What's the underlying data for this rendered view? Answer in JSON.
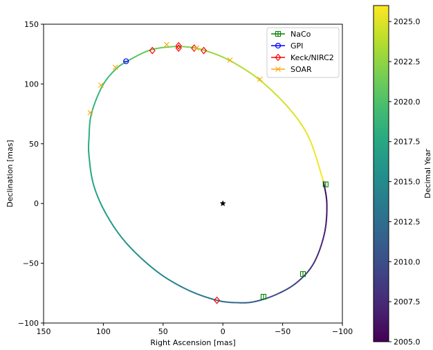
{
  "chart_data": {
    "type": "scatter",
    "xlabel": "Right Ascension [mas]",
    "ylabel": "Declination [mas]",
    "xlim": [
      150,
      -100
    ],
    "ylim": [
      -100,
      150
    ],
    "xticks": [
      150,
      100,
      50,
      0,
      -50,
      -100
    ],
    "yticks": [
      -100,
      -50,
      0,
      50,
      100,
      150
    ],
    "xtick_labels": [
      "150",
      "100",
      "50",
      "0",
      "−50",
      "−100"
    ],
    "ytick_labels": [
      "−100",
      "−50",
      "0",
      "50",
      "100",
      "150"
    ],
    "legend_position": "top-right",
    "star": {
      "x": 0,
      "y": 0,
      "marker": "star",
      "color": "#000000"
    },
    "orbit": {
      "note": "orbit track colored by epoch",
      "points": [
        {
          "x": -84,
          "y": 19,
          "t": 2005.0
        },
        {
          "x": -87,
          "y": 0,
          "t": 2006.0
        },
        {
          "x": -85,
          "y": -25,
          "t": 2007.0
        },
        {
          "x": -76,
          "y": -50,
          "t": 2008.0
        },
        {
          "x": -62,
          "y": -66,
          "t": 2009.0
        },
        {
          "x": -45,
          "y": -76,
          "t": 2010.0
        },
        {
          "x": -27,
          "y": -82,
          "t": 2011.0
        },
        {
          "x": -13,
          "y": -83,
          "t": 2012.0
        },
        {
          "x": 5,
          "y": -81,
          "t": 2013.0
        },
        {
          "x": 30,
          "y": -72,
          "t": 2014.0
        },
        {
          "x": 55,
          "y": -57,
          "t": 2015.0
        },
        {
          "x": 80,
          "y": -34,
          "t": 2016.0
        },
        {
          "x": 97,
          "y": -10,
          "t": 2016.7
        },
        {
          "x": 108,
          "y": 15,
          "t": 2017.3
        },
        {
          "x": 112,
          "y": 40,
          "t": 2017.8
        },
        {
          "x": 112,
          "y": 55,
          "t": 2018.2
        },
        {
          "x": 110,
          "y": 75,
          "t": 2018.7
        },
        {
          "x": 101,
          "y": 98,
          "t": 2019.3
        },
        {
          "x": 90,
          "y": 112,
          "t": 2019.8
        },
        {
          "x": 80,
          "y": 119,
          "t": 2020.2
        },
        {
          "x": 62,
          "y": 128,
          "t": 2020.9
        },
        {
          "x": 45,
          "y": 131,
          "t": 2021.5
        },
        {
          "x": 30,
          "y": 131,
          "t": 2022.0
        },
        {
          "x": 15,
          "y": 128,
          "t": 2022.5
        },
        {
          "x": -5,
          "y": 120,
          "t": 2023.2
        },
        {
          "x": -30,
          "y": 104,
          "t": 2024.0
        },
        {
          "x": -55,
          "y": 80,
          "t": 2024.8
        },
        {
          "x": -72,
          "y": 55,
          "t": 2025.4
        },
        {
          "x": -84,
          "y": 19,
          "t": 2026.0
        }
      ]
    },
    "series": [
      {
        "name": "NaCo",
        "color": "#008000",
        "marker": "square",
        "points": [
          {
            "x": -86,
            "y": 16
          },
          {
            "x": -67,
            "y": -59
          },
          {
            "x": -34,
            "y": -78
          }
        ]
      },
      {
        "name": "GPI",
        "color": "#0000ff",
        "marker": "circle",
        "points": [
          {
            "x": 81,
            "y": 119
          }
        ]
      },
      {
        "name": "Keck/NIRC2",
        "color": "#ff0000",
        "marker": "diamond",
        "points": [
          {
            "x": 59,
            "y": 128
          },
          {
            "x": 37,
            "y": 132
          },
          {
            "x": 37,
            "y": 130
          },
          {
            "x": 24,
            "y": 130
          },
          {
            "x": 16,
            "y": 128
          },
          {
            "x": 5,
            "y": -81
          }
        ]
      },
      {
        "name": "SOAR",
        "color": "#ffa500",
        "marker": "cross",
        "points": [
          {
            "x": 111,
            "y": 76
          },
          {
            "x": 102,
            "y": 99
          },
          {
            "x": 90,
            "y": 114
          },
          {
            "x": 47,
            "y": 133
          },
          {
            "x": 22,
            "y": 130
          },
          {
            "x": -6,
            "y": 120
          },
          {
            "x": -31,
            "y": 104
          }
        ]
      }
    ],
    "colorbar": {
      "label": "Decimal Year",
      "min": 2005.0,
      "max": 2026.0,
      "ticks": [
        2005.0,
        2007.5,
        2010.0,
        2012.5,
        2015.0,
        2017.5,
        2020.0,
        2022.5,
        2025.0
      ],
      "tick_labels": [
        "2005.0",
        "2007.5",
        "2010.0",
        "2012.5",
        "2015.0",
        "2017.5",
        "2020.0",
        "2022.5",
        "2025.0"
      ],
      "colormap": "viridis"
    }
  }
}
